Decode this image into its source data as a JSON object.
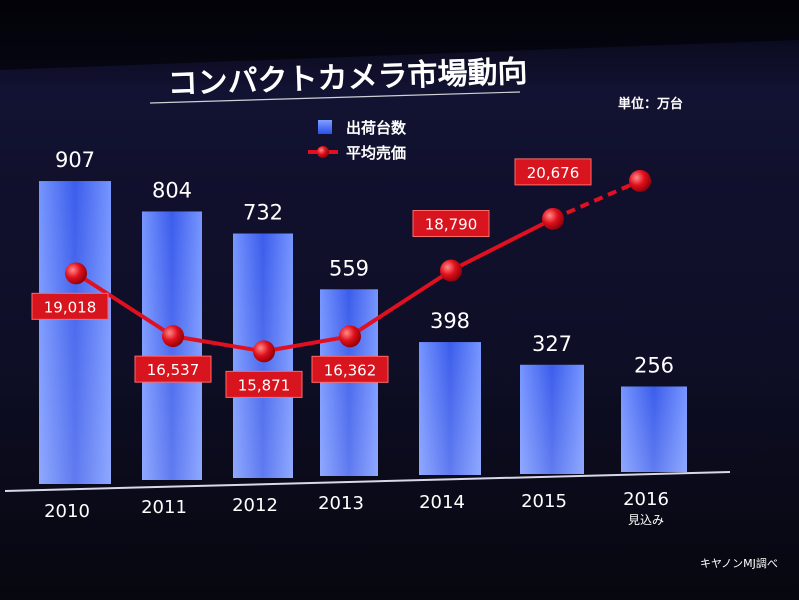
{
  "slide": {
    "title": "コンパクトカメラ市場動向",
    "unit": "単位：万台",
    "source": "キヤノンMJ調べ"
  },
  "colors": {
    "background": "#0a0a1c",
    "bar": "#2f5ff0",
    "line": "#e01020",
    "label_box": "#d8141e",
    "text": "#ffffff"
  },
  "chart_data": {
    "type": "bar",
    "categories": [
      "2010",
      "2011",
      "2012",
      "2013",
      "2014",
      "2015",
      "2016"
    ],
    "category_notes": [
      "",
      "",
      "",
      "",
      "",
      "",
      "見込み"
    ],
    "legend_position": "top-center",
    "grid": false,
    "series": [
      {
        "name": "出荷台数",
        "type": "bar",
        "values": [
          907,
          804,
          732,
          559,
          398,
          327,
          256
        ]
      },
      {
        "name": "平均売価",
        "type": "line",
        "values": [
          19018,
          16537,
          15871,
          16362,
          18790,
          20676,
          null
        ],
        "value_labels": [
          "19,018",
          "16,537",
          "15,871",
          "16,362",
          "18,790",
          "20,676",
          ""
        ],
        "projected_last_point": true,
        "projected_value": 22500
      }
    ]
  }
}
